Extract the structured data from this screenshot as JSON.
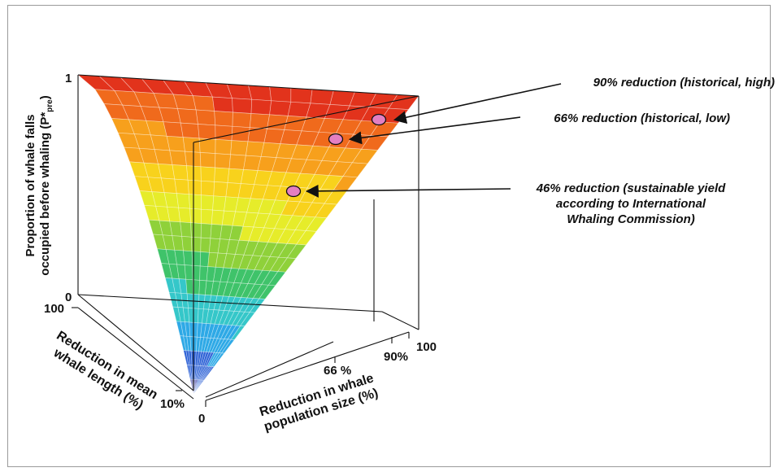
{
  "chart_data": {
    "type": "surface3d",
    "title": "",
    "zlabel_main": "Proportion of whale falls",
    "zlabel_line2": "occupied before whaling (P*",
    "zlabel_sub": "pre",
    "zlabel_close": ")",
    "xlabel_line1": "Reduction in whale",
    "xlabel_line2": "population size (%)",
    "ylabel_line1": "Reduction in mean",
    "ylabel_line2": "whale length  (%)",
    "z_ticks": {
      "top": "1",
      "bottom": "0"
    },
    "x_ticks": [
      "0",
      "66 %",
      "90%",
      "100"
    ],
    "y_ticks": [
      "100",
      "10%"
    ],
    "xlim": [
      0,
      100
    ],
    "ylim": [
      0,
      100
    ],
    "zlim": [
      0,
      1
    ],
    "colormap": [
      "#2b2f9e",
      "#2f63d6",
      "#2ea9e6",
      "#35c7c9",
      "#3fc36a",
      "#8fd13a",
      "#e6ec2a",
      "#f8d21c",
      "#f7a01c",
      "#f06a1c",
      "#e2331c"
    ],
    "points": [
      {
        "x": 90,
        "y": 0,
        "z": 0.93,
        "label": "90% reduction (historical, high)",
        "color": "#e47fc2"
      },
      {
        "x": 66,
        "y": 0,
        "z": 0.82,
        "label": "66% reduction (historical, low)",
        "color": "#e47fc2"
      },
      {
        "x": 46,
        "y": 0,
        "z": 0.62,
        "label_lines": [
          "46% reduction (sustainable yield",
          "according to International",
          "Whaling Commission)"
        ],
        "color": "#e47fc2"
      }
    ]
  }
}
